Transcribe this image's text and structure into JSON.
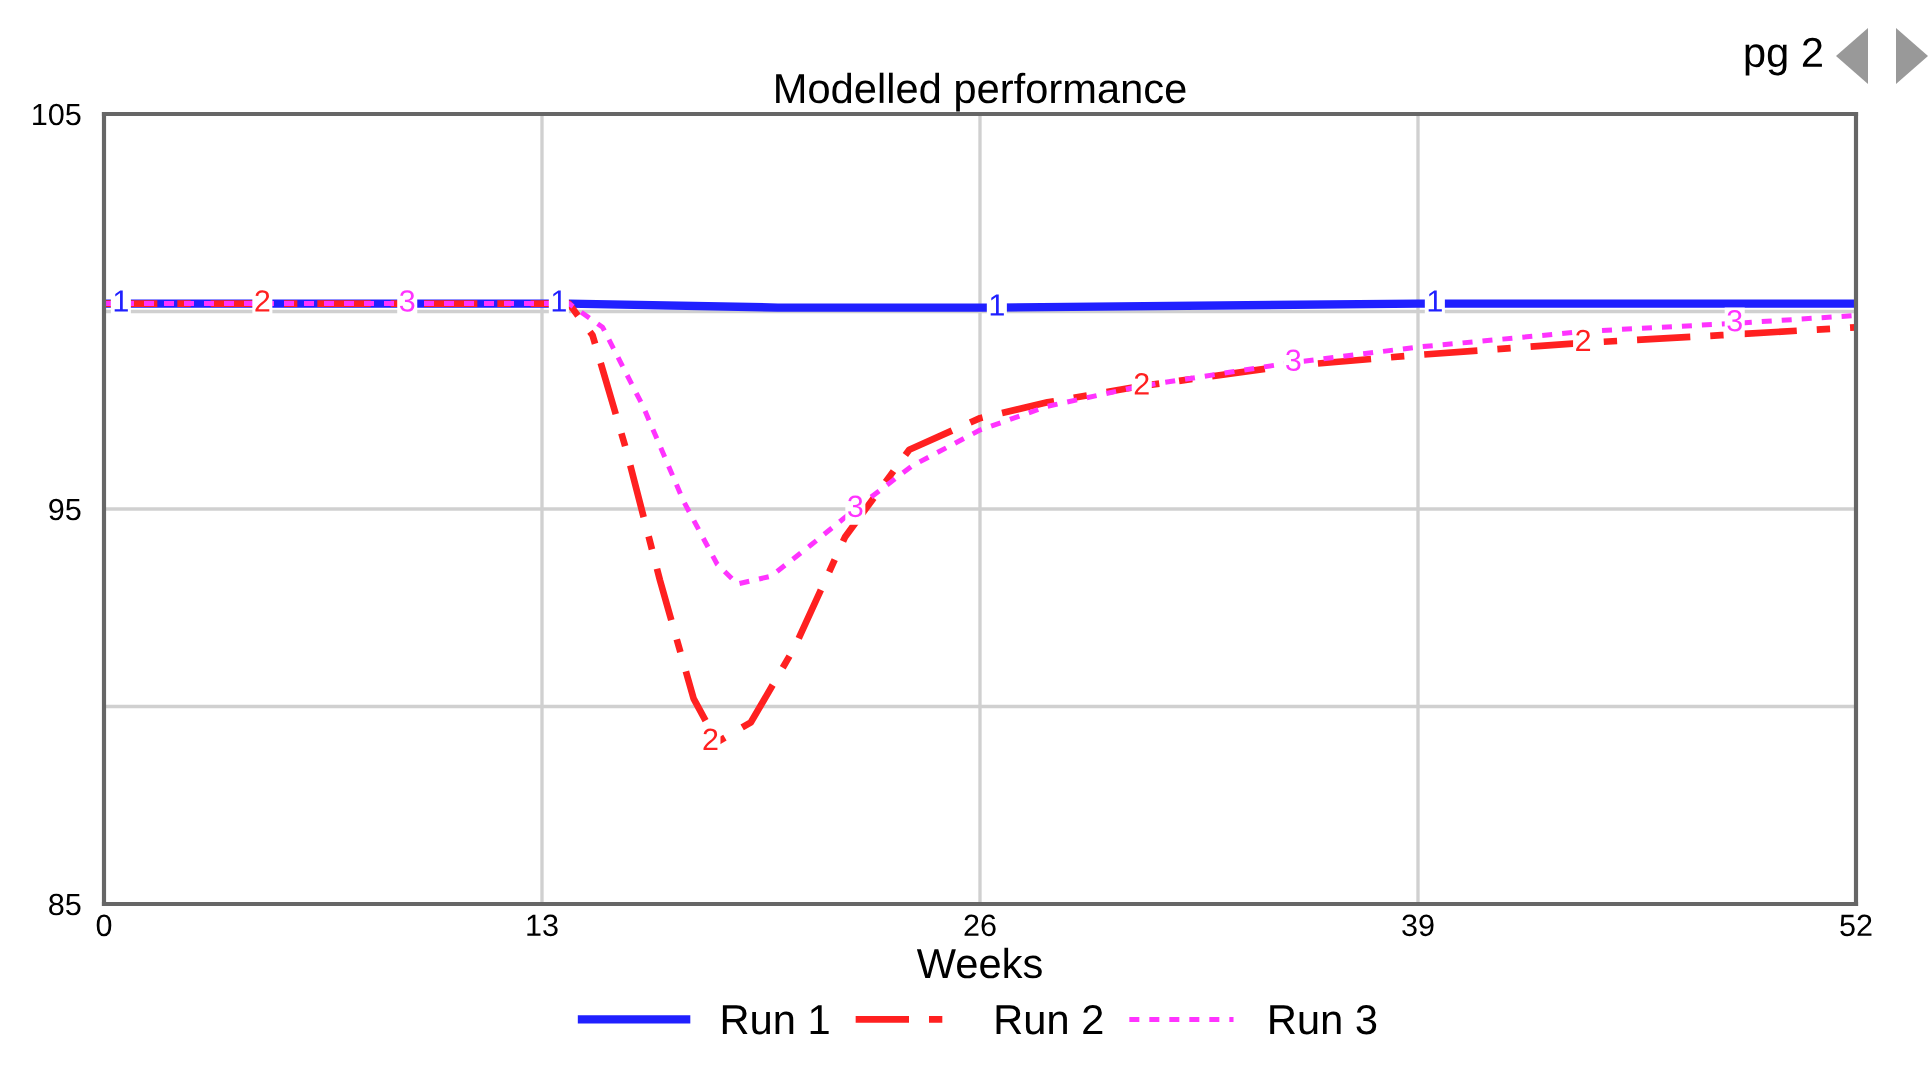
{
  "chart_data": {
    "type": "line",
    "title": "Modelled performance",
    "xlabel": "Weeks",
    "xlim": [
      0,
      52
    ],
    "xticks": [
      0,
      13,
      26,
      39,
      52
    ],
    "ylim": [
      85,
      105
    ],
    "yticks": [
      85,
      {
        "value": 90,
        "label": null
      },
      95,
      {
        "value": 100,
        "label": null
      },
      105
    ],
    "grid": true,
    "legend": "bottom",
    "series": [
      {
        "name": "Run 1",
        "color": "#2020ff",
        "line_style": "solid",
        "x": [
          0,
          13.8,
          20,
          26.5,
          39,
          52
        ],
        "values": [
          100.2,
          100.2,
          100.1,
          100.1,
          100.2,
          100.2
        ]
      },
      {
        "name": "Run 2",
        "color": "#ff2020",
        "line_style": "dashed",
        "x": [
          0,
          13.8,
          14.5,
          15.5,
          16.5,
          17.5,
          18.2,
          19.2,
          20.5,
          22,
          23.9,
          26,
          28,
          30.7,
          34.9,
          39,
          43.8,
          48,
          52
        ],
        "values": [
          100.2,
          100.2,
          99.4,
          96.5,
          93.2,
          90.2,
          89.1,
          89.6,
          91.5,
          94.3,
          96.5,
          97.3,
          97.7,
          98.1,
          98.6,
          98.9,
          99.2,
          99.4,
          99.6
        ]
      },
      {
        "name": "Run 3",
        "color": "#ff33ff",
        "line_style": "dotted",
        "x": [
          0,
          13.8,
          14.8,
          16,
          17.2,
          18.2,
          18.8,
          19.8,
          21,
          22.3,
          24,
          26,
          28,
          30.7,
          35.2,
          39,
          44,
          48.4,
          52
        ],
        "values": [
          100.2,
          100.2,
          99.6,
          97.6,
          95.2,
          93.6,
          93.1,
          93.3,
          94.1,
          95.0,
          96.1,
          97.0,
          97.6,
          98.1,
          98.7,
          99.1,
          99.5,
          99.7,
          99.9
        ]
      }
    ],
    "annotations": [
      "pg 2",
      {
        "text": "1",
        "x": 0.5,
        "y": 100.2
      },
      {
        "text": "1",
        "x": 13.5,
        "y": 100.2
      },
      {
        "text": "1",
        "x": 26.5,
        "y": 100.1
      },
      {
        "text": "1",
        "x": 39.5,
        "y": 100.2
      },
      {
        "text": "2",
        "x": 4.7,
        "y": 100.2
      },
      {
        "text": "2",
        "x": 18,
        "y": 89.1
      },
      {
        "text": "2",
        "x": 30.8,
        "y": 98.1
      },
      {
        "text": "2",
        "x": 43.9,
        "y": 99.2
      },
      {
        "text": "3",
        "x": 9,
        "y": 100.2
      },
      {
        "text": "3",
        "x": 22.3,
        "y": 95.0
      },
      {
        "text": "3",
        "x": 35.3,
        "y": 98.7
      },
      {
        "text": "3",
        "x": 48.4,
        "y": 99.7
      }
    ]
  }
}
